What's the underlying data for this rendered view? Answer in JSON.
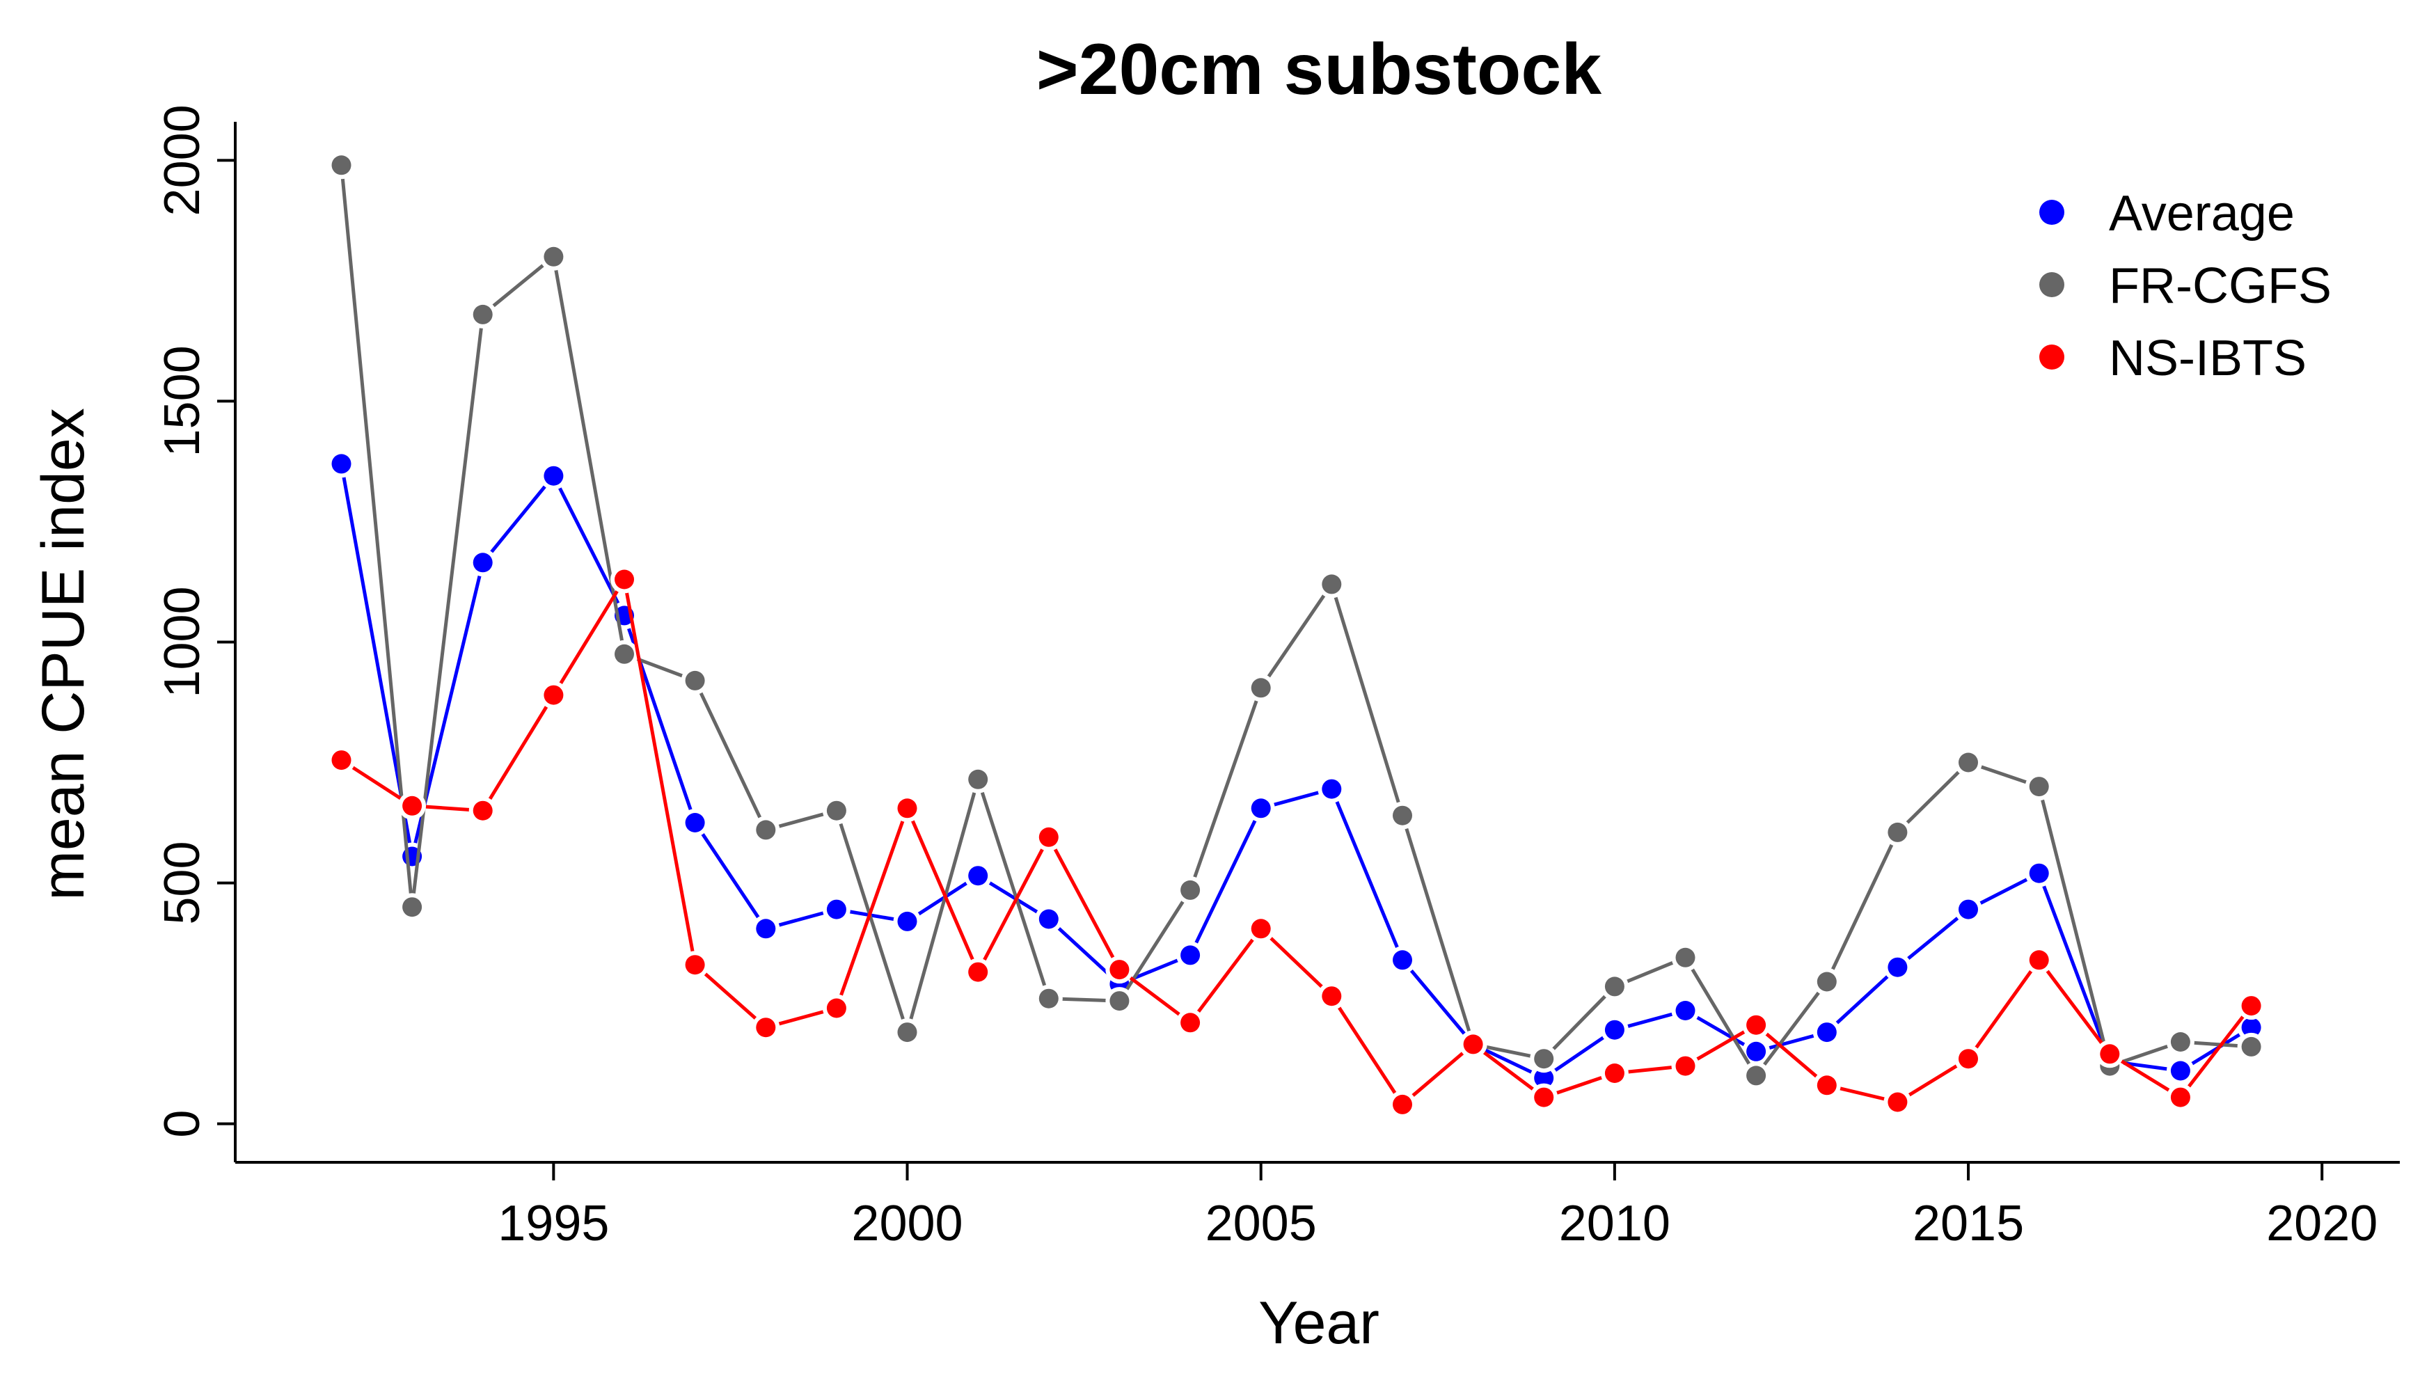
{
  "chart_data": {
    "type": "line",
    "title": ">20cm substock",
    "xlabel": "Year",
    "ylabel": "mean CPUE index",
    "xlim": [
      1990.5,
      2021.1
    ],
    "ylim": [
      -80,
      2080
    ],
    "x_ticks": [
      1995,
      2000,
      2005,
      2010,
      2015,
      2020
    ],
    "y_ticks": [
      0,
      500,
      1000,
      1500,
      2000
    ],
    "x_tick_labels": [
      "1995",
      "2000",
      "2005",
      "2010",
      "2015",
      "2020"
    ],
    "y_tick_labels": [
      "0",
      "500",
      "1000",
      "1500",
      "2000"
    ],
    "grid": false,
    "legend_position": "top-right",
    "x": [
      1992,
      1993,
      1994,
      1995,
      1996,
      1997,
      1998,
      1999,
      2000,
      2001,
      2002,
      2003,
      2004,
      2005,
      2006,
      2007,
      2008,
      2009,
      2010,
      2011,
      2012,
      2013,
      2014,
      2015,
      2016,
      2017,
      2018,
      2019
    ],
    "series": [
      {
        "name": "Average",
        "color": "#0000ff",
        "values": [
          1370,
          555,
          1165,
          1345,
          1055,
          625,
          405,
          445,
          420,
          515,
          425,
          290,
          350,
          655,
          695,
          340,
          165,
          95,
          195,
          235,
          150,
          190,
          325,
          445,
          520,
          130,
          110,
          200
        ]
      },
      {
        "name": "FR-CGFS",
        "color": "#666666",
        "values": [
          1990,
          450,
          1680,
          1800,
          975,
          920,
          610,
          650,
          190,
          715,
          260,
          255,
          485,
          905,
          1120,
          640,
          165,
          135,
          285,
          345,
          100,
          295,
          605,
          750,
          700,
          120,
          170,
          160
        ]
      },
      {
        "name": "NS-IBTS",
        "color": "#ff0000",
        "values": [
          755,
          660,
          650,
          890,
          1130,
          330,
          200,
          240,
          655,
          315,
          595,
          320,
          210,
          405,
          265,
          40,
          165,
          55,
          105,
          120,
          205,
          80,
          45,
          135,
          340,
          145,
          55,
          245
        ]
      }
    ],
    "legend": {
      "entries": [
        "Average",
        "FR-CGFS",
        "NS-IBTS"
      ]
    }
  }
}
